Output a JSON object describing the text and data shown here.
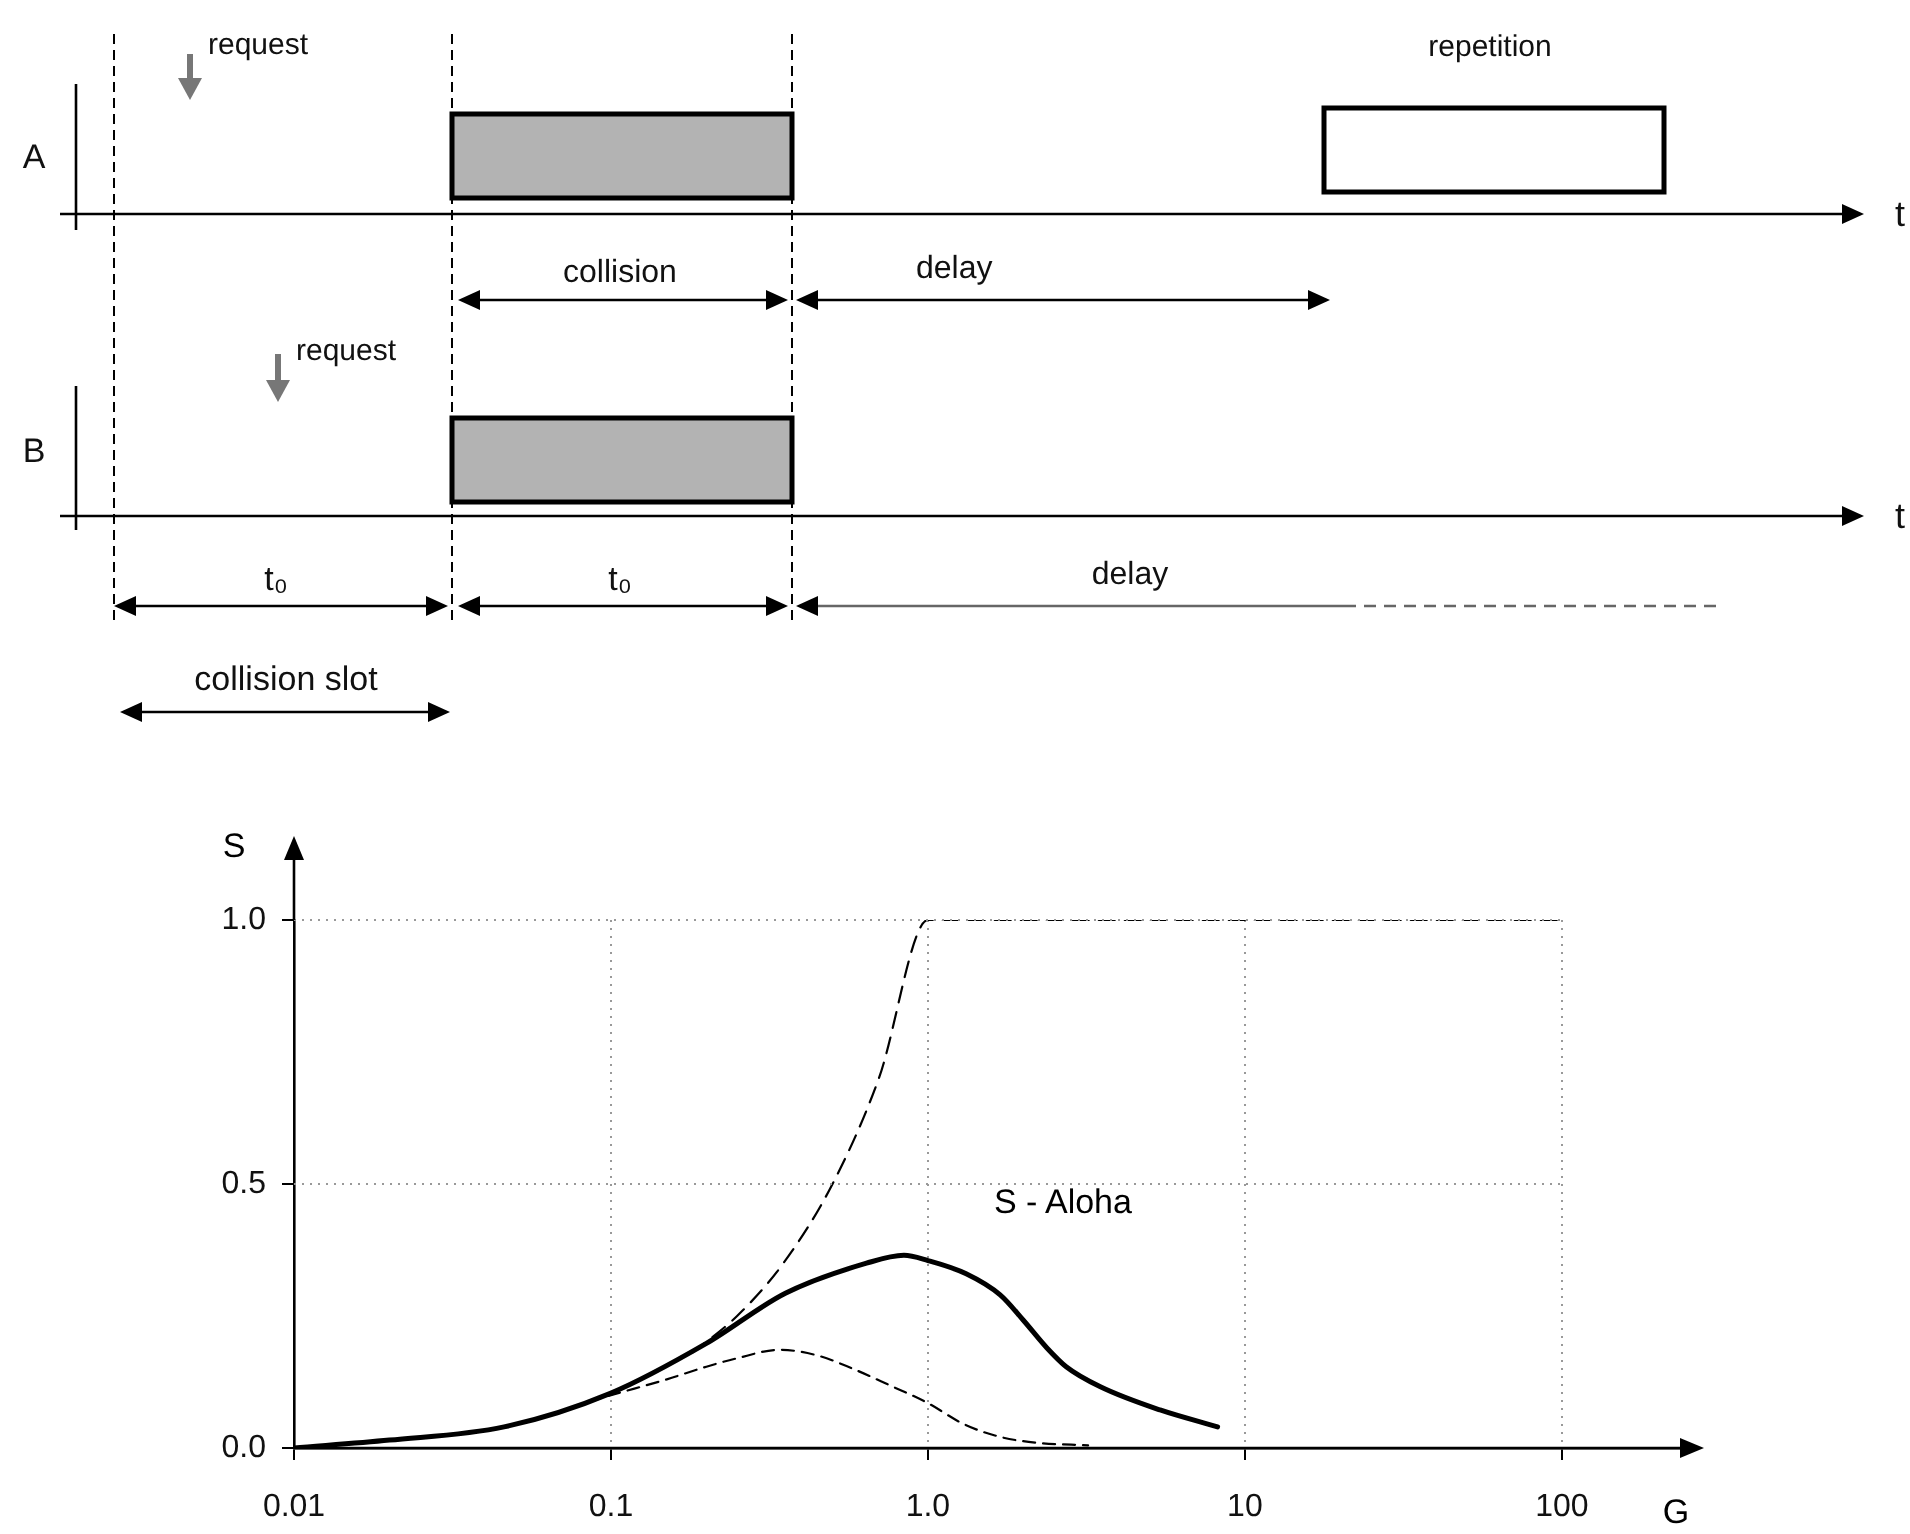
{
  "chart_data": {
    "type": "line",
    "xlabel": "G",
    "ylabel": "S",
    "log": "x",
    "grid": true,
    "legend": false,
    "marker": "none",
    "xlim": [
      0.01,
      250
    ],
    "ylim": [
      0,
      1
    ],
    "xticks": [
      0.01,
      0.1,
      {
        "value": 1,
        "label": "1.0"
      },
      10,
      100
    ],
    "yticks": [
      {
        "value": 0,
        "label": "0.0"
      },
      {
        "value": 0.5,
        "label": "0.5"
      },
      {
        "value": 1,
        "label": "1.0"
      }
    ],
    "series": [
      {
        "name": "S - Aloha",
        "color": "#000000",
        "line_style": "solid",
        "x": [
          0.01,
          0.02,
          0.046,
          0.1,
          0.2,
          0.355,
          0.64,
          0.84,
          1.0,
          1.32,
          1.69,
          2.0,
          2.37,
          2.73,
          3.5,
          5.4,
          8.2
        ],
        "values": [
          0,
          0.015,
          0.04,
          0.104,
          0.198,
          0.293,
          0.35,
          0.365,
          0.355,
          0.33,
          0.29,
          0.242,
          0.19,
          0.154,
          0.116,
          0.072,
          0.04
        ]
      },
      {
        "color": "#000000",
        "line_style": "dashed",
        "x": [
          0.01,
          0.02,
          0.046,
          0.1,
          0.15,
          0.2,
          0.25,
          0.34,
          0.45,
          0.58,
          0.75,
          1.0,
          1.3,
          1.69,
          2.2,
          3.2
        ],
        "values": [
          0,
          0.015,
          0.04,
          0.1,
          0.13,
          0.154,
          0.17,
          0.186,
          0.175,
          0.15,
          0.12,
          0.085,
          0.045,
          0.021,
          0.01,
          0.005
        ]
      },
      {
        "color": "#000000",
        "line_style": "dashed",
        "x": [
          0.18,
          0.25,
          0.35,
          0.5,
          0.7,
          1.0,
          100
        ],
        "values": [
          0.18,
          0.25,
          0.35,
          0.5,
          0.7,
          1.0,
          1.0
        ]
      }
    ],
    "annotations": [
      "A",
      "B",
      "request",
      "request",
      "collision",
      "delay",
      "delay",
      "repetition",
      "t₀",
      "t₀",
      "collision slot",
      "t",
      "t"
    ]
  }
}
